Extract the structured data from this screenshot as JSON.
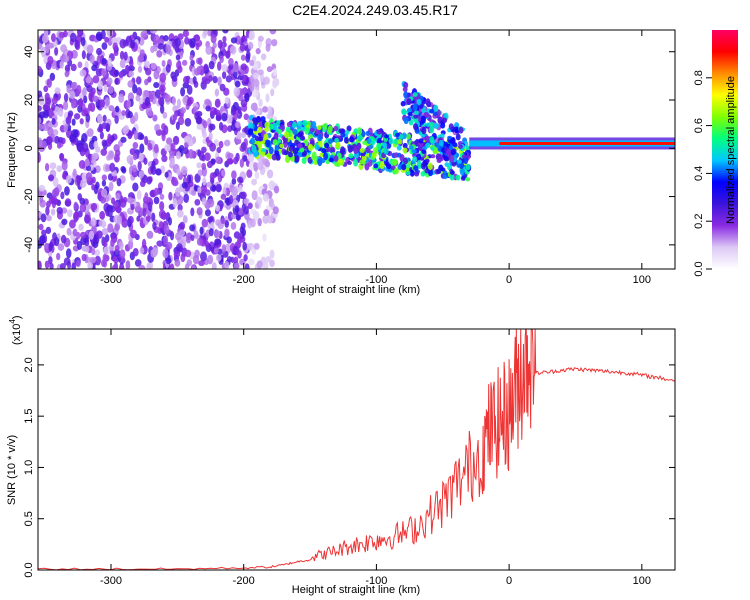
{
  "title": "C2E4.2024.249.03.45.R17",
  "chart_data": [
    {
      "type": "heatmap",
      "xlabel": "Height of straight line (km)",
      "ylabel": "Frequency (Hz)",
      "xlim": [
        -355,
        125
      ],
      "ylim": [
        -50,
        49
      ],
      "xticks": [
        -300,
        -200,
        -100,
        0,
        100
      ],
      "yticks": [
        -40,
        -20,
        0,
        20,
        40
      ],
      "colorbar": {
        "label": "Normalized spectral amplitude",
        "range": [
          0.0,
          1.0
        ],
        "ticks": [
          0.0,
          0.2,
          0.4,
          0.6,
          0.8
        ],
        "tick_labels": [
          "0.0",
          "0.2",
          "0.4",
          "0.6",
          "0.8"
        ],
        "colors": [
          "#ffffff",
          "#dcc8f5",
          "#8a2be2",
          "#3c14dc",
          "#0000ff",
          "#00c8ff",
          "#00ff80",
          "#80ff00",
          "#ffff00",
          "#ff8c00",
          "#ff0000",
          "#ff0064"
        ]
      },
      "features": [
        {
          "region": "noise",
          "x": [
            -355,
            -195
          ],
          "y": [
            -50,
            49
          ],
          "amplitude": 0.15
        },
        {
          "region": "sparse-noise",
          "x": [
            -195,
            -175
          ],
          "y": [
            -50,
            49
          ],
          "amplitude": 0.08
        },
        {
          "region": "band",
          "x": [
            -195,
            -30
          ],
          "y_center": [
            5,
            -5
          ],
          "amplitude": 0.45
        },
        {
          "region": "arc",
          "x": [
            -80,
            -35
          ],
          "y_center": [
            20,
            0
          ],
          "amplitude": 0.35
        },
        {
          "region": "tone",
          "x": [
            -30,
            125
          ],
          "y_center": [
            2,
            2
          ],
          "amplitude": 0.9
        }
      ]
    },
    {
      "type": "line",
      "xlabel": "Height of straight line (km)",
      "ylabel": "SNR (10 * v/v)",
      "scale_label": "(x10",
      "scale_exponent": "4",
      "scale_suffix": ")",
      "xlim": [
        -355,
        125
      ],
      "ylim": [
        0,
        2.35
      ],
      "xticks": [
        -300,
        -200,
        -100,
        0,
        100
      ],
      "yticks": [
        0.0,
        0.5,
        1.0,
        1.5,
        2.0
      ],
      "ytick_labels": [
        "0.0",
        "0.5",
        "1.0",
        "1.5",
        "2.0"
      ],
      "color": "#ee3333",
      "series": [
        {
          "x": [
            -355,
            -300,
            -250,
            -200,
            -180,
            -170,
            -160,
            -150,
            -140,
            -130,
            -120,
            -110,
            -100,
            -90,
            -80,
            -70,
            -60,
            -50,
            -40,
            -30,
            -20,
            -15,
            -10,
            -5,
            0,
            5,
            10,
            15,
            20,
            30,
            40,
            50,
            60,
            70,
            80,
            90,
            100,
            110,
            125
          ],
          "y": [
            0.01,
            0.01,
            0.01,
            0.02,
            0.03,
            0.05,
            0.08,
            0.1,
            0.13,
            0.16,
            0.2,
            0.22,
            0.25,
            0.27,
            0.3,
            0.35,
            0.45,
            0.55,
            0.7,
            0.85,
            1.0,
            1.15,
            1.2,
            1.25,
            1.3,
            1.5,
            1.7,
            1.85,
            1.92,
            1.93,
            1.95,
            1.96,
            1.95,
            1.94,
            1.93,
            1.92,
            1.9,
            1.88,
            1.85
          ]
        }
      ]
    }
  ]
}
